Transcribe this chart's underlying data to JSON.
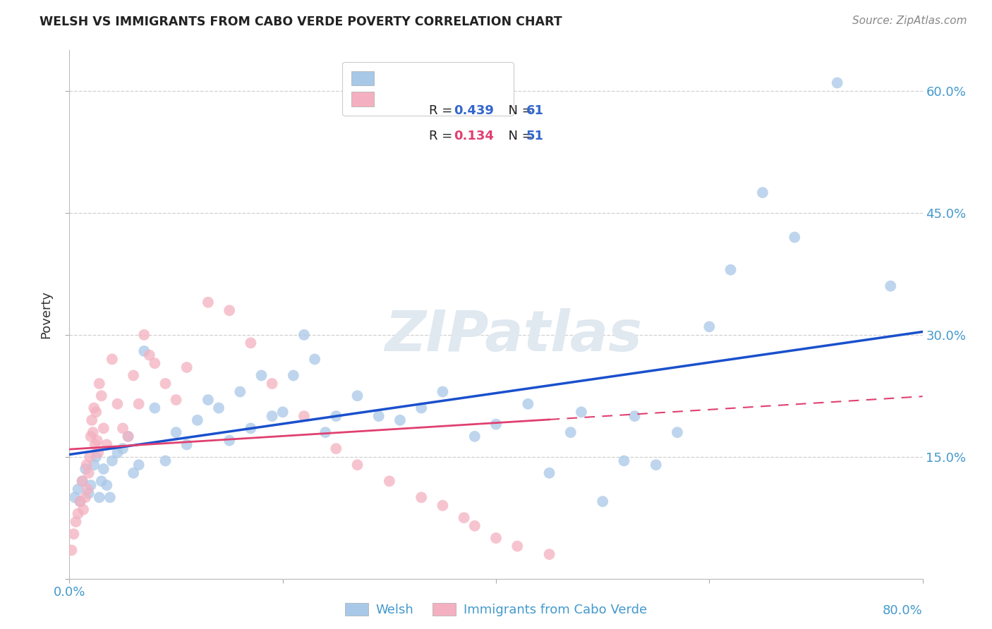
{
  "title": "WELSH VS IMMIGRANTS FROM CABO VERDE POVERTY CORRELATION CHART",
  "source": "Source: ZipAtlas.com",
  "ylabel": "Poverty",
  "x_min": 0.0,
  "x_max": 80.0,
  "y_min": 0.0,
  "y_max": 65.0,
  "y_ticks": [
    0,
    15,
    30,
    45,
    60
  ],
  "y_tick_labels": [
    "",
    "15.0%",
    "30.0%",
    "45.0%",
    "60.0%"
  ],
  "welsh_R": 0.439,
  "welsh_N": 61,
  "cabo_R": 0.134,
  "cabo_N": 51,
  "welsh_color": "#a8c8e8",
  "cabo_color": "#f4b0c0",
  "welsh_line_color": "#1a50cc",
  "cabo_line_color": "#e04070",
  "background_color": "#ffffff",
  "grid_color": "#d0d0d0",
  "title_color": "#222222",
  "axis_tick_color": "#4499cc",
  "legend_text_color": "#222222",
  "legend_R_color": "#3366cc",
  "legend_N_color": "#3366cc",
  "source_color": "#888888",
  "watermark": "ZIPatlas",
  "welsh_x": [
    0.5,
    0.8,
    1.0,
    1.2,
    1.5,
    1.8,
    2.0,
    2.3,
    2.5,
    2.8,
    3.0,
    3.2,
    3.5,
    3.8,
    4.0,
    4.5,
    5.0,
    5.5,
    6.0,
    6.5,
    7.0,
    8.0,
    9.0,
    10.0,
    11.0,
    12.0,
    13.0,
    14.0,
    15.0,
    16.0,
    17.0,
    18.0,
    19.0,
    20.0,
    21.0,
    22.0,
    23.0,
    24.0,
    25.0,
    27.0,
    29.0,
    31.0,
    33.0,
    35.0,
    38.0,
    40.0,
    43.0,
    45.0,
    47.0,
    48.0,
    50.0,
    52.0,
    53.0,
    55.0,
    57.0,
    60.0,
    62.0,
    65.0,
    68.0,
    72.0,
    77.0
  ],
  "welsh_y": [
    10.0,
    11.0,
    9.5,
    12.0,
    13.5,
    10.5,
    11.5,
    14.0,
    15.0,
    10.0,
    12.0,
    13.5,
    11.5,
    10.0,
    14.5,
    15.5,
    16.0,
    17.5,
    13.0,
    14.0,
    28.0,
    21.0,
    14.5,
    18.0,
    16.5,
    19.5,
    22.0,
    21.0,
    17.0,
    23.0,
    18.5,
    25.0,
    20.0,
    20.5,
    25.0,
    30.0,
    27.0,
    18.0,
    20.0,
    22.5,
    20.0,
    19.5,
    21.0,
    23.0,
    17.5,
    19.0,
    21.5,
    13.0,
    18.0,
    20.5,
    9.5,
    14.5,
    20.0,
    14.0,
    18.0,
    31.0,
    38.0,
    47.5,
    42.0,
    61.0,
    36.0
  ],
  "cabo_x": [
    0.2,
    0.4,
    0.6,
    0.8,
    1.0,
    1.2,
    1.3,
    1.5,
    1.6,
    1.7,
    1.8,
    1.9,
    2.0,
    2.1,
    2.2,
    2.3,
    2.4,
    2.5,
    2.6,
    2.7,
    2.8,
    3.0,
    3.2,
    3.5,
    4.0,
    4.5,
    5.0,
    5.5,
    6.0,
    6.5,
    7.0,
    7.5,
    8.0,
    9.0,
    10.0,
    11.0,
    13.0,
    15.0,
    17.0,
    19.0,
    22.0,
    25.0,
    27.0,
    30.0,
    33.0,
    35.0,
    37.0,
    38.0,
    40.0,
    42.0,
    45.0
  ],
  "cabo_y": [
    3.5,
    5.5,
    7.0,
    8.0,
    9.5,
    12.0,
    8.5,
    10.0,
    14.0,
    11.0,
    13.0,
    15.0,
    17.5,
    19.5,
    18.0,
    21.0,
    16.5,
    20.5,
    17.0,
    15.5,
    24.0,
    22.5,
    18.5,
    16.5,
    27.0,
    21.5,
    18.5,
    17.5,
    25.0,
    21.5,
    30.0,
    27.5,
    26.5,
    24.0,
    22.0,
    26.0,
    34.0,
    33.0,
    29.0,
    24.0,
    20.0,
    16.0,
    14.0,
    12.0,
    10.0,
    9.0,
    7.5,
    6.5,
    5.0,
    4.0,
    3.0
  ]
}
